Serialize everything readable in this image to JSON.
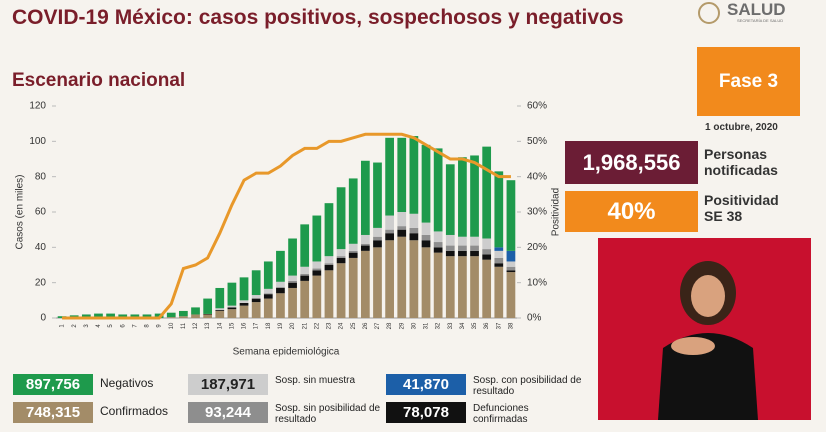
{
  "header": {
    "title": "COVID-19 México: casos positivos, sospechosos y negativos",
    "logo": "SALUD",
    "logo_sub": "SECRETARÍA DE SALUD"
  },
  "subtitle": "Escenario nacional",
  "phase": "Fase 3",
  "date": "1 octubre, 2020",
  "notified": {
    "value": "1,968,556",
    "label": "Personas notificadas"
  },
  "positivity": {
    "value": "40%",
    "label": "Positividad SE 38"
  },
  "chart_data": {
    "type": "bar",
    "stacked": true,
    "xlabel": "Semana epidemiológica",
    "ylabel": "Casos (en miles)",
    "y2label": "Positividad",
    "categories": [
      "1",
      "2",
      "3",
      "4",
      "5",
      "6",
      "7",
      "8",
      "9",
      "10",
      "11",
      "12",
      "13",
      "14",
      "15",
      "16",
      "17",
      "18",
      "19",
      "20",
      "21",
      "22",
      "23",
      "24",
      "25",
      "26",
      "27",
      "28",
      "29",
      "30",
      "31",
      "32",
      "33",
      "34",
      "35",
      "36",
      "37",
      "38"
    ],
    "ylim": [
      0,
      120
    ],
    "yticks": [
      0,
      20,
      40,
      60,
      80,
      100,
      120
    ],
    "y2lim": [
      0,
      60
    ],
    "y2ticks": [
      {
        "value": 0,
        "label": "0%"
      },
      {
        "value": 10,
        "label": "10%"
      },
      {
        "value": 20,
        "label": "20%"
      },
      {
        "value": 30,
        "label": "30%"
      },
      {
        "value": 40,
        "label": "40%"
      },
      {
        "value": 50,
        "label": "50%"
      },
      {
        "value": 60,
        "label": "60%"
      }
    ],
    "series": [
      {
        "name": "Confirmados",
        "total": "748,315",
        "color": "#a38c68",
        "values": [
          0,
          0,
          0,
          0,
          0,
          0,
          0,
          0,
          0,
          0.5,
          1,
          2,
          2,
          4,
          5,
          7,
          9,
          11,
          14,
          17,
          21,
          24,
          27,
          31,
          34,
          38,
          40,
          44,
          46,
          44,
          40,
          37,
          35,
          35,
          35,
          33,
          29,
          26
        ]
      },
      {
        "name": "Defunciones confirmadas",
        "total": "78,078",
        "color": "#111111",
        "values": [
          0,
          0,
          0,
          0,
          0,
          0,
          0,
          0,
          0,
          0,
          0,
          0,
          0.3,
          0.5,
          1,
          1.5,
          2,
          2.5,
          3,
          3,
          3,
          3,
          3,
          3,
          3,
          3,
          4,
          4,
          4,
          4,
          4,
          3,
          3,
          3,
          3,
          3,
          2,
          1
        ]
      },
      {
        "name": "Sosp. sin posibilidad de resultado",
        "total": "93,244",
        "color": "#8e8e8e",
        "values": [
          0,
          0,
          0,
          0,
          0,
          0,
          0,
          0,
          0,
          0,
          0,
          0,
          0,
          0,
          0,
          0,
          0,
          0.5,
          0.5,
          1,
          1,
          1,
          1,
          1,
          1,
          1,
          2,
          2,
          2,
          3,
          3,
          3,
          3,
          3,
          3,
          3,
          3,
          2
        ]
      },
      {
        "name": "Sosp. sin muestra",
        "total": "187,971",
        "color": "#cdcdcd",
        "values": [
          0,
          0,
          0,
          0,
          0,
          0,
          0,
          0,
          0,
          0,
          0,
          0,
          0,
          1,
          1,
          1.5,
          2,
          2.5,
          3,
          3,
          4,
          4,
          4,
          4,
          4,
          5,
          5,
          8,
          8,
          8,
          7,
          6,
          6,
          5,
          5,
          6,
          4,
          3
        ]
      },
      {
        "name": "Sosp. con posibilidad de resultado",
        "total": "41,870",
        "color": "#1c5fa8",
        "values": [
          0,
          0,
          0,
          0,
          0,
          0,
          0,
          0,
          0,
          0,
          0,
          0,
          0,
          0,
          0,
          0,
          0,
          0,
          0,
          0,
          0,
          0,
          0,
          0,
          0,
          0,
          0,
          0,
          0,
          0,
          0,
          0,
          0,
          0,
          0,
          0,
          2,
          6
        ]
      },
      {
        "name": "Negativos",
        "total": "897,756",
        "color": "#1e9a4c",
        "values": [
          1,
          1.5,
          2,
          2.5,
          2.5,
          2,
          2,
          2,
          2.5,
          2.5,
          3,
          4,
          8.7,
          11.5,
          13,
          13,
          14,
          15.5,
          17.5,
          21,
          24,
          26,
          30,
          35,
          37,
          42,
          37,
          44,
          42,
          44,
          44,
          47,
          40,
          45,
          46,
          52,
          43,
          40
        ]
      }
    ],
    "line": {
      "axis": "y2",
      "color": "#e8982a",
      "values": [
        0,
        0,
        0,
        0,
        0,
        0,
        0,
        0,
        0,
        4,
        14,
        15,
        17,
        24,
        32,
        39,
        41,
        41,
        43,
        46,
        48,
        48,
        50,
        50,
        51,
        52,
        52,
        52,
        52,
        51,
        49,
        47,
        45,
        45,
        44,
        42,
        40,
        40
      ]
    }
  }
}
